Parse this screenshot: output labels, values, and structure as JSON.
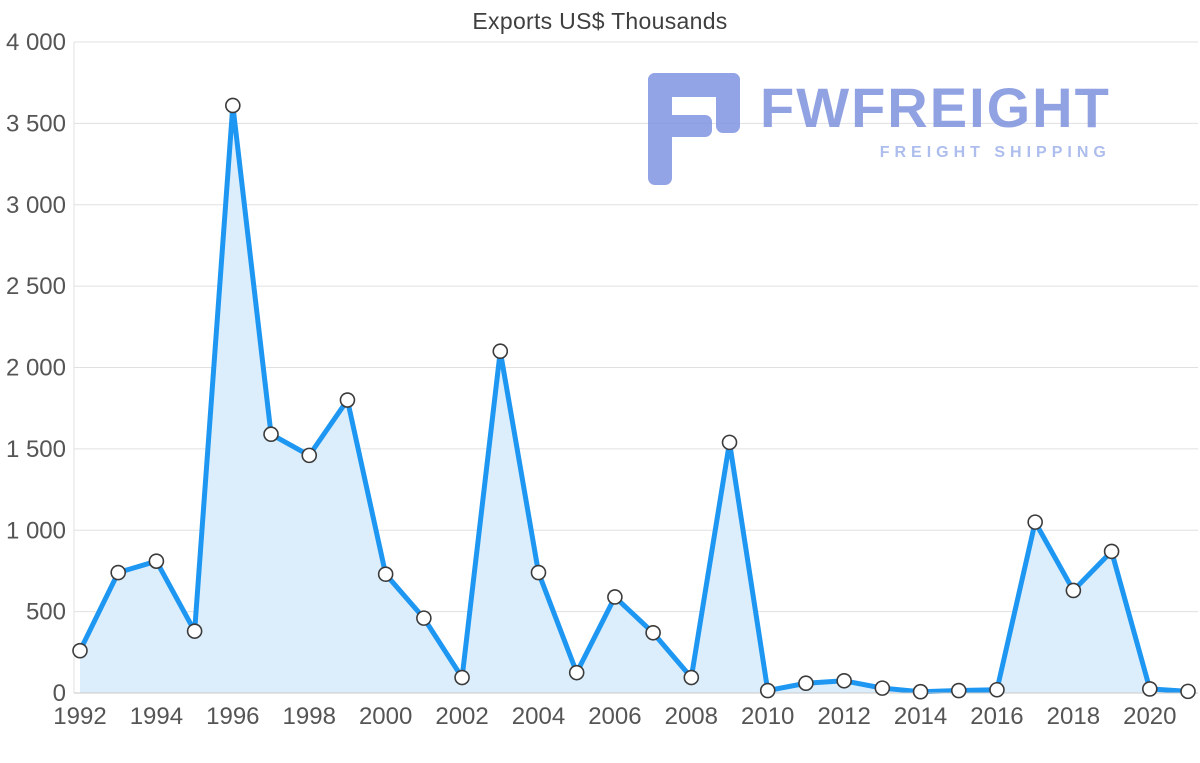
{
  "chart_data": {
    "type": "area",
    "title": "Exports US$ Thousands",
    "x": [
      1992,
      1993,
      1994,
      1995,
      1996,
      1997,
      1998,
      1999,
      2000,
      2001,
      2002,
      2003,
      2004,
      2005,
      2006,
      2007,
      2008,
      2009,
      2010,
      2011,
      2012,
      2013,
      2014,
      2015,
      2016,
      2017,
      2018,
      2019,
      2020,
      2021
    ],
    "values": [
      260,
      740,
      810,
      380,
      3610,
      1590,
      1460,
      1800,
      730,
      460,
      95,
      2100,
      740,
      125,
      590,
      370,
      95,
      1540,
      15,
      60,
      75,
      30,
      8,
      15,
      20,
      1050,
      630,
      870,
      25,
      10
    ],
    "ylim": [
      0,
      4000
    ],
    "ytick_values": [
      0,
      500,
      1000,
      1500,
      2000,
      2500,
      3000,
      3500,
      4000
    ],
    "ytick_labels": [
      "0",
      "500",
      "1 000",
      "1 500",
      "2 000",
      "2 500",
      "3 000",
      "3 500",
      "4 000"
    ],
    "xtick_values": [
      1992,
      1994,
      1996,
      1998,
      2000,
      2002,
      2004,
      2006,
      2008,
      2010,
      2012,
      2014,
      2016,
      2018,
      2020
    ],
    "xtick_labels": [
      "1992",
      "1994",
      "1996",
      "1998",
      "2000",
      "2002",
      "2004",
      "2006",
      "2008",
      "2010",
      "2012",
      "2014",
      "2016",
      "2018",
      "2020"
    ],
    "grid": "horizontal",
    "legend": "none",
    "colors": {
      "line": "#1e97f3",
      "fill": "#dceefb",
      "marker_fill": "#ffffff",
      "marker_stroke": "#3b3b3b",
      "grid": "#e0e0e0",
      "axis": "#c9c9c9",
      "tick_text": "#555555",
      "title_text": "#3f3f3f"
    }
  },
  "watermark": {
    "brand": "FWFREIGHT",
    "tagline": "FREIGHT SHIPPING",
    "icon_color": "#8094e2"
  }
}
